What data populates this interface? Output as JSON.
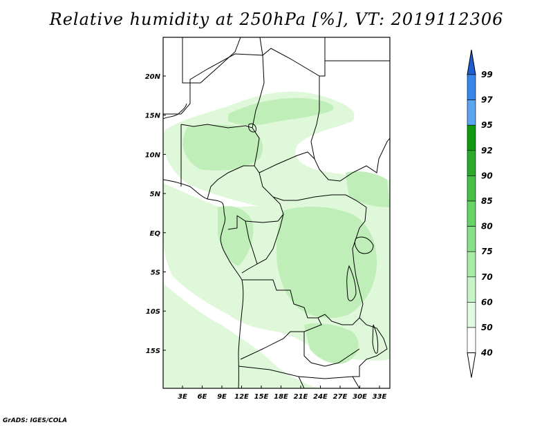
{
  "title": "Relative humidity at 250hPa [%], VT: 2019112306",
  "credit": "GrADS: IGES/COLA",
  "map": {
    "lon_labels": [
      "3E",
      "6E",
      "9E",
      "12E",
      "15E",
      "18E",
      "21E",
      "24E",
      "27E",
      "30E",
      "33E"
    ],
    "lat_labels": [
      "20N",
      "15N",
      "10N",
      "5N",
      "EQ",
      "5S",
      "10S",
      "15S"
    ]
  },
  "colorbar": {
    "levels": [
      "99",
      "97",
      "95",
      "92",
      "90",
      "85",
      "80",
      "75",
      "70",
      "60",
      "50",
      "40"
    ],
    "colors": [
      "#1e5fd0",
      "#3a86e8",
      "#5aa4f0",
      "#109a10",
      "#2caa2c",
      "#48c048",
      "#66d466",
      "#88e088",
      "#a8eca8",
      "#c6f4c6",
      "#e2fae2",
      "#ffffff"
    ],
    "min_arrow_color": "#ffffff",
    "max_arrow_color": "#1e5fd0"
  },
  "fill_colors": {
    "light": "#dff8d9",
    "medium": "#bfeeb8",
    "dense": "#a8e6a0"
  }
}
